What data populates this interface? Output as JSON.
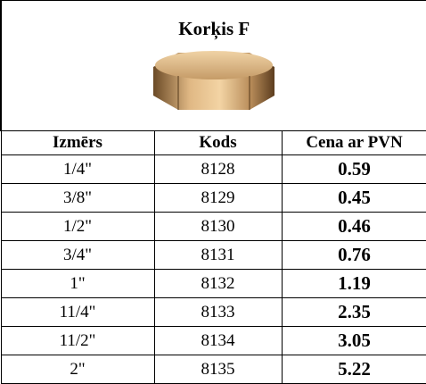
{
  "header": {
    "title": "Korķis F"
  },
  "table": {
    "columns": [
      "Izmērs",
      "Kods",
      "Cena ar PVN"
    ],
    "rows": [
      [
        "1/4\"",
        "8128",
        "0.59"
      ],
      [
        "3/8\"",
        "8129",
        "0.45"
      ],
      [
        "1/2\"",
        "8130",
        "0.46"
      ],
      [
        "3/4\"",
        "8131",
        "0.76"
      ],
      [
        "1\"",
        "8132",
        "1.19"
      ],
      [
        "11/4\"",
        "8133",
        "2.35"
      ],
      [
        "11/2\"",
        "8134",
        "3.05"
      ],
      [
        "2\"",
        "8135",
        "5.22"
      ]
    ]
  }
}
